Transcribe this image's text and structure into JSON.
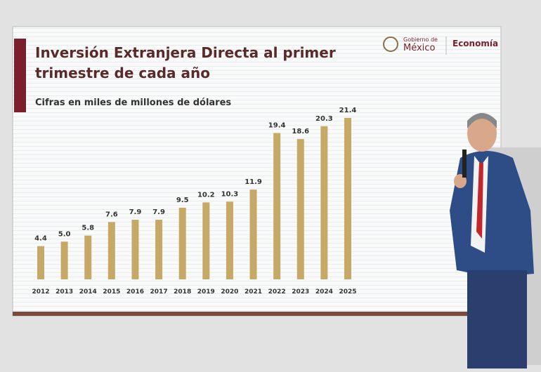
{
  "chart_data": {
    "type": "bar",
    "title": "Inversión Extranjera Directa al primer trimestre de cada año",
    "subtitle": "Cifras en miles de millones de dólares",
    "logos": [
      "Gobierno de",
      "México",
      "Economía"
    ],
    "categories": [
      "2012",
      "2013",
      "2014",
      "2015",
      "2016",
      "2017",
      "2018",
      "2019",
      "2020",
      "2021",
      "2022",
      "2023",
      "2024",
      "2025"
    ],
    "values": [
      4.4,
      5.0,
      5.8,
      7.6,
      7.9,
      7.9,
      9.5,
      10.2,
      10.3,
      11.9,
      19.4,
      18.6,
      20.3,
      21.4
    ],
    "value_labels": [
      "4.4",
      "5.0",
      "5.8",
      "7.6",
      "7.9",
      "7.9",
      "9.5",
      "10.2",
      "10.3",
      "11.9",
      "19.4",
      "18.6",
      "20.3",
      "21.4"
    ],
    "color": "#c6a867"
  }
}
